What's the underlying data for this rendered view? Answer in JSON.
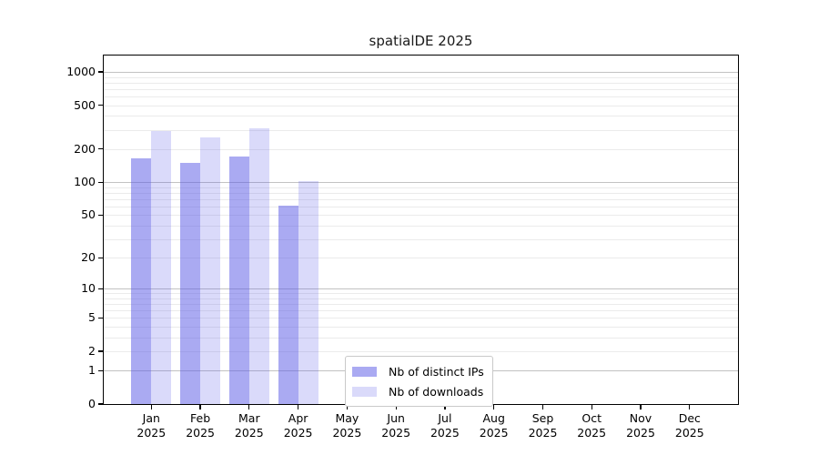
{
  "title": "spatialDE 2025",
  "chart_data": {
    "type": "bar",
    "title": "spatialDE 2025",
    "categories": [
      "Jan 2025",
      "Feb 2025",
      "Mar 2025",
      "Apr 2025",
      "May 2025",
      "Jun 2025",
      "Jul 2025",
      "Aug 2025",
      "Sep 2025",
      "Oct 2025",
      "Nov 2025",
      "Dec 2025"
    ],
    "series": [
      {
        "name": "Nb of distinct IPs",
        "color": "rgba(85,85,230,0.5)",
        "values": [
          166,
          150,
          170,
          61,
          0,
          0,
          0,
          0,
          0,
          0,
          0,
          0
        ]
      },
      {
        "name": "Nb of downloads",
        "color": "rgba(85,85,230,0.22)",
        "values": [
          292,
          255,
          309,
          102,
          0,
          0,
          0,
          0,
          0,
          0,
          0,
          0
        ]
      }
    ],
    "xlabel": "",
    "ylabel": "",
    "yscale": "log1p",
    "ylim": [
      0,
      1400
    ],
    "yticks": [
      0,
      1,
      2,
      5,
      10,
      20,
      50,
      100,
      200,
      500,
      1000
    ],
    "grid": "both",
    "legend_position": "lower-center"
  }
}
